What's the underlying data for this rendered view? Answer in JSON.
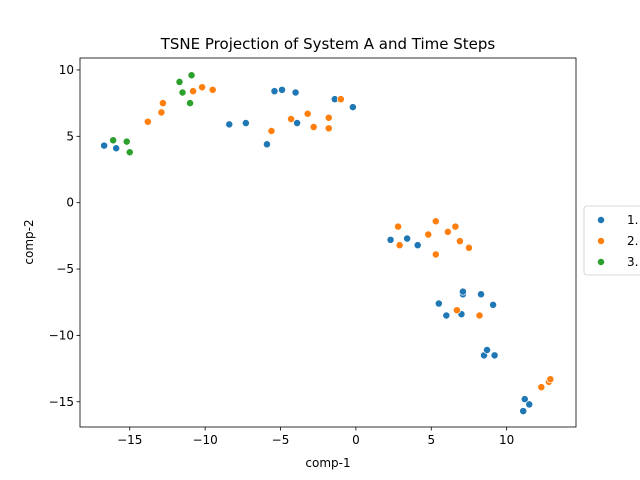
{
  "chart_data": {
    "type": "scatter",
    "title": "TSNE Projection of System A and Time Steps",
    "xlabel": "comp-1",
    "ylabel": "comp-2",
    "xlim": [
      -18.3,
      14.6
    ],
    "ylim": [
      -16.9,
      10.9
    ],
    "xticks": [
      -15,
      -10,
      -5,
      0,
      5,
      10
    ],
    "yticks": [
      -15,
      -10,
      -5,
      0,
      5,
      10
    ],
    "grid": false,
    "legend_position": "center-right, outside plot",
    "series": [
      {
        "name": "1.",
        "color": "#1f77b4",
        "points": [
          [
            -16.7,
            4.3
          ],
          [
            -15.9,
            4.1
          ],
          [
            -8.4,
            5.9
          ],
          [
            -7.3,
            6.0
          ],
          [
            -5.9,
            4.4
          ],
          [
            -5.4,
            8.4
          ],
          [
            -4.9,
            8.5
          ],
          [
            -4.0,
            8.3
          ],
          [
            -3.9,
            6.0
          ],
          [
            -1.4,
            7.8
          ],
          [
            -0.2,
            7.2
          ],
          [
            2.3,
            -2.8
          ],
          [
            3.4,
            -2.7
          ],
          [
            4.1,
            -3.2
          ],
          [
            5.5,
            -7.6
          ],
          [
            6.0,
            -8.5
          ],
          [
            7.0,
            -8.4
          ],
          [
            7.1,
            -6.9
          ],
          [
            7.1,
            -6.7
          ],
          [
            8.3,
            -6.9
          ],
          [
            9.1,
            -7.7
          ],
          [
            8.5,
            -11.5
          ],
          [
            8.7,
            -11.1
          ],
          [
            9.2,
            -11.5
          ],
          [
            11.2,
            -14.8
          ],
          [
            11.5,
            -15.2
          ],
          [
            11.1,
            -15.7
          ]
        ]
      },
      {
        "name": "2.",
        "color": "#ff7f0e",
        "points": [
          [
            -13.8,
            6.1
          ],
          [
            -12.9,
            6.8
          ],
          [
            -12.8,
            7.5
          ],
          [
            -10.8,
            8.4
          ],
          [
            -10.2,
            8.7
          ],
          [
            -9.5,
            8.5
          ],
          [
            -5.6,
            5.4
          ],
          [
            -4.3,
            6.3
          ],
          [
            -3.2,
            6.7
          ],
          [
            -2.8,
            5.7
          ],
          [
            -1.8,
            6.4
          ],
          [
            -1.8,
            5.6
          ],
          [
            -1.0,
            7.8
          ],
          [
            2.8,
            -1.8
          ],
          [
            2.9,
            -3.2
          ],
          [
            4.8,
            -2.4
          ],
          [
            5.3,
            -1.4
          ],
          [
            5.3,
            -3.9
          ],
          [
            6.1,
            -2.2
          ],
          [
            6.6,
            -1.8
          ],
          [
            6.9,
            -2.9
          ],
          [
            7.5,
            -3.4
          ],
          [
            6.7,
            -8.1
          ],
          [
            8.2,
            -8.5
          ],
          [
            12.3,
            -13.9
          ],
          [
            12.8,
            -13.5
          ],
          [
            12.9,
            -13.3
          ]
        ]
      },
      {
        "name": "3.",
        "color": "#2ca02c",
        "points": [
          [
            -16.1,
            4.7
          ],
          [
            -15.2,
            4.6
          ],
          [
            -15.0,
            3.8
          ],
          [
            -11.7,
            9.1
          ],
          [
            -11.5,
            8.3
          ],
          [
            -11.0,
            7.5
          ],
          [
            -10.9,
            9.6
          ]
        ]
      }
    ]
  }
}
